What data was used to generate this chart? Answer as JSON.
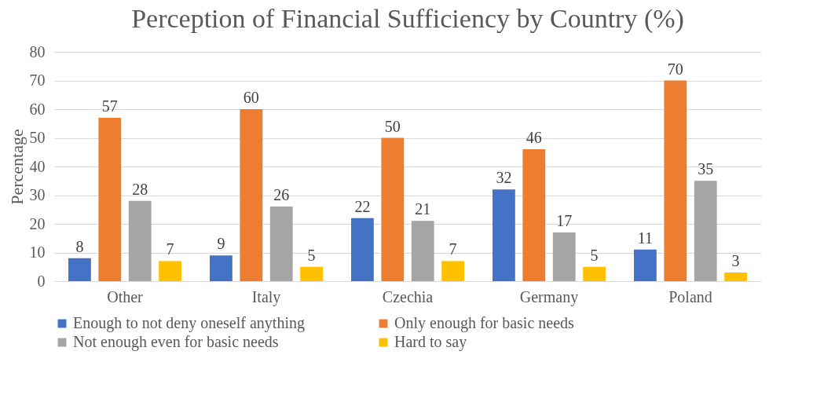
{
  "chart_data": {
    "type": "bar",
    "title": "Perception of Financial Sufficiency by Country (%)",
    "ylabel": "Percentage",
    "categories": [
      "Other",
      "Italy",
      "Czechia",
      "Germany",
      "Poland"
    ],
    "series": [
      {
        "name": "Enough to not deny oneself anything",
        "color": "#4472c4",
        "values": [
          8,
          9,
          22,
          32,
          11
        ]
      },
      {
        "name": "Only enough for basic needs",
        "color": "#ed7d31",
        "values": [
          57,
          60,
          50,
          46,
          70
        ]
      },
      {
        "name": "Not enough even for basic needs",
        "color": "#a5a5a5",
        "values": [
          28,
          26,
          21,
          17,
          35
        ]
      },
      {
        "name": "Hard to say",
        "color": "#ffc000",
        "values": [
          7,
          5,
          7,
          5,
          3
        ]
      }
    ],
    "ylim": [
      0,
      80
    ],
    "yticks": [
      0,
      10,
      20,
      30,
      40,
      50,
      60,
      70,
      80
    ],
    "grid": "y",
    "legend": "bottom",
    "data_labels": true
  }
}
